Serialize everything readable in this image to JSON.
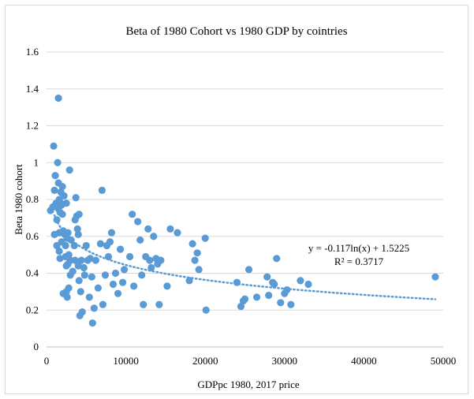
{
  "chart_data": {
    "type": "scatter",
    "title": "Beta of 1980 Cohort vs 1980 GDP by cointries",
    "xlabel": "GDPpc 1980, 2017 price",
    "ylabel": "Beta 1980 cohort",
    "xlim": [
      0,
      50000
    ],
    "ylim": [
      0,
      1.6
    ],
    "x_ticks": [
      0,
      10000,
      20000,
      30000,
      40000,
      50000
    ],
    "y_ticks": [
      0,
      0.2,
      0.4,
      0.6,
      0.8,
      1,
      1.2,
      1.4,
      1.6
    ],
    "x_tick_labels": [
      "0",
      "10000",
      "20000",
      "30000",
      "40000",
      "50000"
    ],
    "y_tick_labels": [
      "0",
      "0.2",
      "0.4",
      "0.6",
      "0.8",
      "1",
      "1.2",
      "1.4",
      "1.6"
    ],
    "grid": "horizontal",
    "legend": "none",
    "point_color": "#5b9bd5",
    "trendline": {
      "type": "logarithmic",
      "a": -0.117,
      "b": 1.5225,
      "x_range": [
        1000,
        49000
      ],
      "equation": "y = -0.117ln(x) + 1.5225",
      "r_squared": "R² = 0.3717",
      "color": "#5b9bd5",
      "style": "dotted"
    },
    "points": [
      {
        "x": 500,
        "y": 0.74
      },
      {
        "x": 800,
        "y": 0.76
      },
      {
        "x": 900,
        "y": 1.09
      },
      {
        "x": 1000,
        "y": 0.61
      },
      {
        "x": 1000,
        "y": 0.85
      },
      {
        "x": 1100,
        "y": 0.93
      },
      {
        "x": 1200,
        "y": 0.78
      },
      {
        "x": 1300,
        "y": 0.69
      },
      {
        "x": 1300,
        "y": 0.55
      },
      {
        "x": 1400,
        "y": 1.0
      },
      {
        "x": 1500,
        "y": 1.35
      },
      {
        "x": 1500,
        "y": 0.89
      },
      {
        "x": 1500,
        "y": 0.75
      },
      {
        "x": 1600,
        "y": 0.8
      },
      {
        "x": 1600,
        "y": 0.62
      },
      {
        "x": 1600,
        "y": 0.52
      },
      {
        "x": 1700,
        "y": 0.48
      },
      {
        "x": 1700,
        "y": 0.73
      },
      {
        "x": 1800,
        "y": 0.84
      },
      {
        "x": 1800,
        "y": 0.78
      },
      {
        "x": 1900,
        "y": 0.77
      },
      {
        "x": 1900,
        "y": 0.57
      },
      {
        "x": 2000,
        "y": 0.87
      },
      {
        "x": 2000,
        "y": 0.72
      },
      {
        "x": 2100,
        "y": 0.63
      },
      {
        "x": 2100,
        "y": 0.29
      },
      {
        "x": 2200,
        "y": 0.82
      },
      {
        "x": 2300,
        "y": 0.61
      },
      {
        "x": 2400,
        "y": 0.55
      },
      {
        "x": 2400,
        "y": 0.49
      },
      {
        "x": 2500,
        "y": 0.78
      },
      {
        "x": 2500,
        "y": 0.44
      },
      {
        "x": 2500,
        "y": 0.3
      },
      {
        "x": 2600,
        "y": 0.59
      },
      {
        "x": 2600,
        "y": 0.27
      },
      {
        "x": 2700,
        "y": 0.62
      },
      {
        "x": 2700,
        "y": 0.45
      },
      {
        "x": 2800,
        "y": 0.5
      },
      {
        "x": 2800,
        "y": 0.32
      },
      {
        "x": 2900,
        "y": 0.96
      },
      {
        "x": 3000,
        "y": 0.47
      },
      {
        "x": 3000,
        "y": 0.39
      },
      {
        "x": 3100,
        "y": 0.58
      },
      {
        "x": 3300,
        "y": 0.41
      },
      {
        "x": 3500,
        "y": 0.55
      },
      {
        "x": 3600,
        "y": 0.47
      },
      {
        "x": 3600,
        "y": 0.69
      },
      {
        "x": 3700,
        "y": 0.81
      },
      {
        "x": 3800,
        "y": 0.71
      },
      {
        "x": 3900,
        "y": 0.64
      },
      {
        "x": 4000,
        "y": 0.61
      },
      {
        "x": 4000,
        "y": 0.44
      },
      {
        "x": 4100,
        "y": 0.72
      },
      {
        "x": 4100,
        "y": 0.36
      },
      {
        "x": 4200,
        "y": 0.17
      },
      {
        "x": 4300,
        "y": 0.3
      },
      {
        "x": 4400,
        "y": 0.47
      },
      {
        "x": 4500,
        "y": 0.19
      },
      {
        "x": 4700,
        "y": 0.43
      },
      {
        "x": 4800,
        "y": 0.39
      },
      {
        "x": 5000,
        "y": 0.55
      },
      {
        "x": 5200,
        "y": 0.47
      },
      {
        "x": 5400,
        "y": 0.27
      },
      {
        "x": 5500,
        "y": 0.48
      },
      {
        "x": 5700,
        "y": 0.38
      },
      {
        "x": 5800,
        "y": 0.13
      },
      {
        "x": 6000,
        "y": 0.21
      },
      {
        "x": 6200,
        "y": 0.47
      },
      {
        "x": 6500,
        "y": 0.32
      },
      {
        "x": 6800,
        "y": 0.56
      },
      {
        "x": 7000,
        "y": 0.85
      },
      {
        "x": 7100,
        "y": 0.23
      },
      {
        "x": 7400,
        "y": 0.39
      },
      {
        "x": 7600,
        "y": 0.55
      },
      {
        "x": 7800,
        "y": 0.49
      },
      {
        "x": 8000,
        "y": 0.57
      },
      {
        "x": 8200,
        "y": 0.62
      },
      {
        "x": 8400,
        "y": 0.34
      },
      {
        "x": 8700,
        "y": 0.4
      },
      {
        "x": 9000,
        "y": 0.29
      },
      {
        "x": 9300,
        "y": 0.53
      },
      {
        "x": 9600,
        "y": 0.35
      },
      {
        "x": 9800,
        "y": 0.42
      },
      {
        "x": 10500,
        "y": 0.49
      },
      {
        "x": 10800,
        "y": 0.72
      },
      {
        "x": 11000,
        "y": 0.33
      },
      {
        "x": 11500,
        "y": 0.68
      },
      {
        "x": 11800,
        "y": 0.58
      },
      {
        "x": 12000,
        "y": 0.39
      },
      {
        "x": 12200,
        "y": 0.23
      },
      {
        "x": 12500,
        "y": 0.49
      },
      {
        "x": 12800,
        "y": 0.64
      },
      {
        "x": 13000,
        "y": 0.47
      },
      {
        "x": 13200,
        "y": 0.43
      },
      {
        "x": 13500,
        "y": 0.6
      },
      {
        "x": 13800,
        "y": 0.48
      },
      {
        "x": 14000,
        "y": 0.45
      },
      {
        "x": 14200,
        "y": 0.23
      },
      {
        "x": 14400,
        "y": 0.47
      },
      {
        "x": 15200,
        "y": 0.33
      },
      {
        "x": 15600,
        "y": 0.64
      },
      {
        "x": 16500,
        "y": 0.62
      },
      {
        "x": 18000,
        "y": 0.36
      },
      {
        "x": 18400,
        "y": 0.56
      },
      {
        "x": 18700,
        "y": 0.47
      },
      {
        "x": 19000,
        "y": 0.51
      },
      {
        "x": 19200,
        "y": 0.42
      },
      {
        "x": 20000,
        "y": 0.59
      },
      {
        "x": 20100,
        "y": 0.2
      },
      {
        "x": 24000,
        "y": 0.35
      },
      {
        "x": 24500,
        "y": 0.22
      },
      {
        "x": 24800,
        "y": 0.25
      },
      {
        "x": 25000,
        "y": 0.26
      },
      {
        "x": 25500,
        "y": 0.42
      },
      {
        "x": 26500,
        "y": 0.27
      },
      {
        "x": 27800,
        "y": 0.38
      },
      {
        "x": 28000,
        "y": 0.28
      },
      {
        "x": 28500,
        "y": 0.35
      },
      {
        "x": 28700,
        "y": 0.34
      },
      {
        "x": 29000,
        "y": 0.48
      },
      {
        "x": 29500,
        "y": 0.24
      },
      {
        "x": 30000,
        "y": 0.29
      },
      {
        "x": 30300,
        "y": 0.31
      },
      {
        "x": 30800,
        "y": 0.23
      },
      {
        "x": 32000,
        "y": 0.36
      },
      {
        "x": 33000,
        "y": 0.34
      },
      {
        "x": 49000,
        "y": 0.38
      }
    ]
  }
}
